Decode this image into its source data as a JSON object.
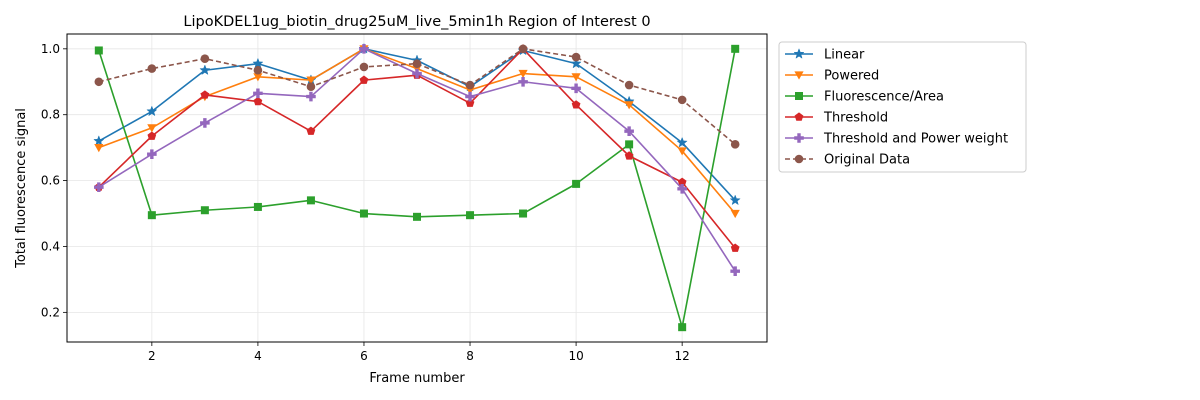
{
  "chart_data": {
    "type": "line",
    "title": "LipoKDEL1ug_biotin_drug25uM_live_5min1h Region of Interest 0",
    "xlabel": "Frame number",
    "ylabel": "Total fluorescence signal",
    "x": [
      1,
      2,
      3,
      4,
      5,
      6,
      7,
      8,
      9,
      10,
      11,
      12,
      13
    ],
    "xlim": [
      0.4,
      13.6
    ],
    "ylim": [
      0.11,
      1.045
    ],
    "xticks": [
      "2",
      "4",
      "6",
      "8",
      "10",
      "12"
    ],
    "yticks": [
      "0.2",
      "0.4",
      "0.6",
      "0.8",
      "1.0"
    ],
    "grid": true,
    "legend_position": "outside-right",
    "series": [
      {
        "name": "Linear",
        "color": "#1f77b4",
        "marker": "star",
        "dashed": false,
        "values": [
          0.72,
          0.81,
          0.935,
          0.955,
          0.905,
          1.0,
          0.965,
          0.885,
          0.995,
          0.955,
          0.84,
          0.715,
          0.54
        ]
      },
      {
        "name": "Powered",
        "color": "#ff7f0e",
        "marker": "triangle-down",
        "dashed": false,
        "values": [
          0.7,
          0.76,
          0.855,
          0.915,
          0.905,
          1.0,
          0.94,
          0.875,
          0.925,
          0.915,
          0.83,
          0.69,
          0.5
        ]
      },
      {
        "name": "Fluorescence/Area",
        "color": "#2ca02c",
        "marker": "square",
        "dashed": false,
        "values": [
          0.995,
          0.495,
          0.51,
          0.52,
          0.54,
          0.5,
          0.49,
          0.495,
          0.5,
          0.59,
          0.71,
          0.155,
          1.0
        ]
      },
      {
        "name": "Threshold",
        "color": "#d62728",
        "marker": "pentagon",
        "dashed": false,
        "values": [
          0.58,
          0.735,
          0.86,
          0.84,
          0.75,
          0.905,
          0.92,
          0.835,
          1.0,
          0.83,
          0.675,
          0.595,
          0.395
        ]
      },
      {
        "name": "Threshold and Power weight",
        "color": "#9467bd",
        "marker": "plus",
        "dashed": false,
        "values": [
          0.58,
          0.68,
          0.775,
          0.865,
          0.855,
          1.0,
          0.925,
          0.855,
          0.9,
          0.88,
          0.75,
          0.575,
          0.325
        ]
      },
      {
        "name": "Original Data",
        "color": "#8c564b",
        "marker": "circle",
        "dashed": true,
        "values": [
          0.9,
          0.94,
          0.97,
          0.935,
          0.885,
          0.945,
          0.955,
          0.89,
          1.0,
          0.975,
          0.89,
          0.845,
          0.71
        ]
      }
    ]
  }
}
